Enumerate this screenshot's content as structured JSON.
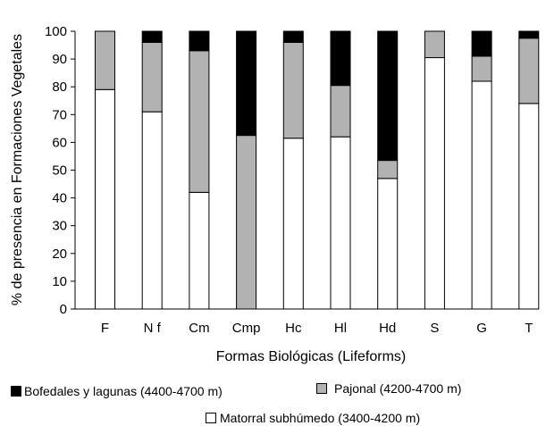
{
  "chart_data": {
    "type": "bar",
    "stacked": true,
    "categories": [
      "F",
      "N f",
      "Cm",
      "Cmp",
      "Hc",
      "Hl",
      "Hd",
      "S",
      "G",
      "T"
    ],
    "series": [
      {
        "name": "Matorral subhúmedo (3400-4200 m)",
        "color": "#ffffff",
        "values": [
          79,
          71,
          42,
          0,
          61.5,
          62,
          47,
          90.5,
          82,
          74
        ]
      },
      {
        "name": "Pajonal (4200-4700 m)",
        "color": "#b2b2b2",
        "values": [
          21,
          25,
          51,
          62.5,
          34.5,
          18.5,
          6.5,
          9.5,
          9,
          23.5
        ]
      },
      {
        "name": "Bofedales y lagunas (4400-4700 m)",
        "color": "#000000",
        "values": [
          0,
          4,
          7,
          37.5,
          4,
          19.5,
          46.5,
          0,
          9,
          2.5
        ]
      }
    ],
    "xlabel": "Formas Biológicas (Lifeforms)",
    "ylabel": "% de presencia en Formaciones Vegetales",
    "ylim": [
      0,
      100
    ],
    "yticks": [
      0,
      10,
      20,
      30,
      40,
      50,
      60,
      70,
      80,
      90,
      100
    ],
    "grid": false,
    "legend_placement": "bottom"
  }
}
